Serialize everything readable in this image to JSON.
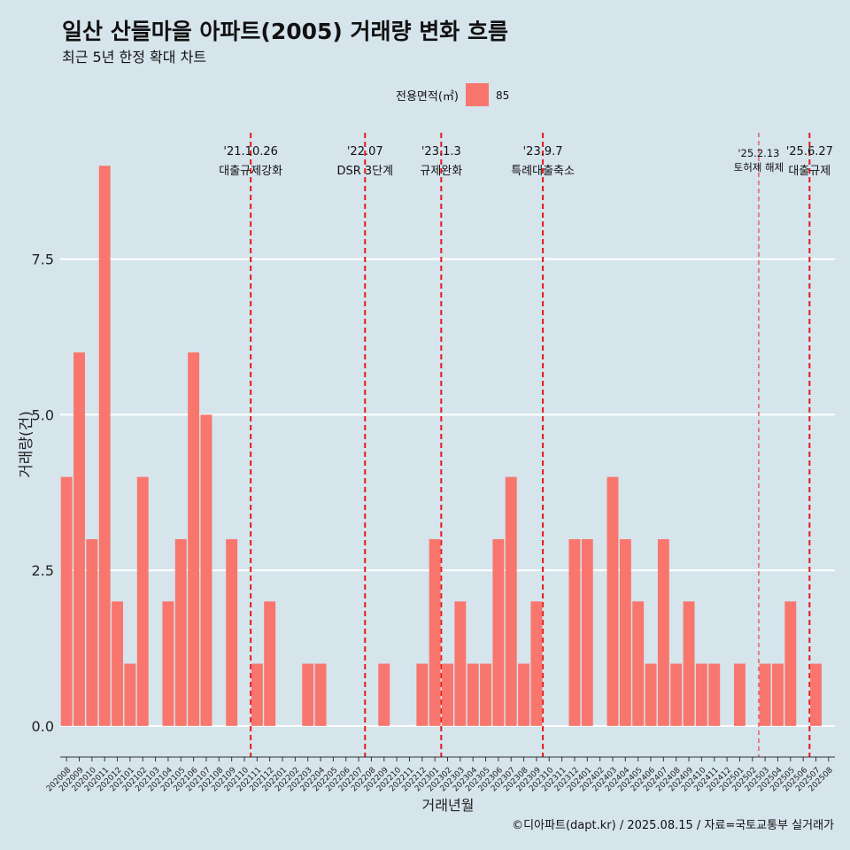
{
  "chart_data": {
    "type": "bar",
    "title": "일산 산들마을 아파트(2005) 거래량 변화 흐름",
    "subtitle": "최근 5년 한정 확대 차트",
    "xlabel": "거래년월",
    "ylabel": "거래량(건)",
    "ylim": [
      -0.5,
      9.6
    ],
    "y_ticks": [
      "0.0",
      "2.5",
      "5.0",
      "7.5"
    ],
    "y_tick_values": [
      0,
      2.5,
      5,
      7.5
    ],
    "legend": {
      "title": "전용면적(㎡)",
      "position": "top",
      "entries": [
        {
          "label": "85",
          "color": "#f8766d"
        }
      ]
    },
    "categories": [
      "202008",
      "202009",
      "202010",
      "202011",
      "202012",
      "202101",
      "202102",
      "202103",
      "202104",
      "202105",
      "202106",
      "202107",
      "202108",
      "202109",
      "202110",
      "202111",
      "202112",
      "202201",
      "202202",
      "202203",
      "202204",
      "202205",
      "202206",
      "202207",
      "202208",
      "202209",
      "202210",
      "202211",
      "202212",
      "202301",
      "202302",
      "202303",
      "202304",
      "202305",
      "202306",
      "202307",
      "202308",
      "202309",
      "202310",
      "202311",
      "202312",
      "202401",
      "202402",
      "202403",
      "202404",
      "202405",
      "202406",
      "202407",
      "202408",
      "202409",
      "202410",
      "202411",
      "202412",
      "202501",
      "202502",
      "202503",
      "202504",
      "202505",
      "202506",
      "202507",
      "202508"
    ],
    "series": [
      {
        "name": "85",
        "color": "#f8766d",
        "values": [
          4,
          6,
          3,
          9,
          2,
          1,
          4,
          0,
          2,
          3,
          6,
          5,
          0,
          3,
          0,
          1,
          2,
          0,
          0,
          1,
          1,
          0,
          0,
          0,
          0,
          1,
          0,
          0,
          1,
          3,
          1,
          2,
          1,
          1,
          3,
          4,
          1,
          2,
          0,
          0,
          3,
          3,
          0,
          4,
          3,
          2,
          1,
          3,
          1,
          2,
          1,
          1,
          0,
          1,
          0,
          1,
          1,
          2,
          0,
          1,
          0
        ]
      }
    ],
    "events": [
      {
        "line1": "'21.10.26",
        "line2": "대출규제강화",
        "after_category": "202110",
        "style": "bold"
      },
      {
        "line1": "'22.07",
        "line2": "DSR 3단계",
        "after_category": "202207",
        "style": "bold"
      },
      {
        "line1": "'23.1.3",
        "line2": "규제완화",
        "after_category": "202301",
        "style": "bold"
      },
      {
        "line1": "'23.9.7",
        "line2": "특례대출축소",
        "after_category": "202309",
        "style": "bold"
      },
      {
        "line1": "'25.2.13",
        "line2": "토허제 해제",
        "after_category": "202502",
        "style": "thin"
      },
      {
        "line1": "'25.6.27",
        "line2": "대출규제",
        "after_category": "202506",
        "style": "bold"
      }
    ],
    "grid": true,
    "caption": "©디아파트(dapt.kr) / 2025.08.15 / 자료=국토교통부 실거래가"
  }
}
